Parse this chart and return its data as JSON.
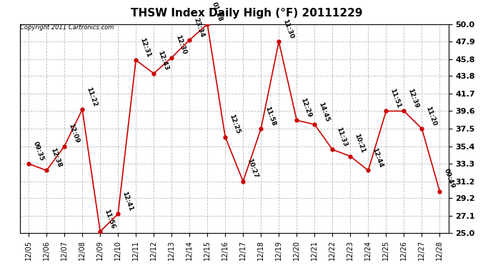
{
  "title": "THSW Index Daily High (°F) 20111229",
  "copyright": "Copyright 2011 Cartronics.com",
  "x_labels": [
    "12/05",
    "12/06",
    "12/07",
    "12/08",
    "12/09",
    "12/10",
    "12/11",
    "12/12",
    "12/13",
    "12/14",
    "12/15",
    "12/16",
    "12/17",
    "12/18",
    "12/19",
    "12/20",
    "12/21",
    "12/22",
    "12/23",
    "12/24",
    "12/25",
    "12/26",
    "12/27",
    "12/28"
  ],
  "y_values": [
    33.3,
    32.5,
    35.4,
    39.8,
    25.2,
    27.3,
    45.7,
    44.1,
    46.0,
    48.1,
    50.0,
    36.5,
    31.2,
    37.5,
    47.9,
    38.5,
    38.0,
    35.0,
    34.2,
    32.5,
    39.6,
    39.6,
    37.5,
    30.0
  ],
  "time_labels": [
    "09:35",
    "12:38",
    "12:09",
    "11:22",
    "11:56",
    "12:41",
    "12:31",
    "12:43",
    "12:30",
    "23:34",
    "01:18",
    "12:25",
    "10:27",
    "11:58",
    "11:30",
    "12:29",
    "14:45",
    "11:33",
    "10:21",
    "12:44",
    "11:51",
    "12:39",
    "11:20",
    "09:49"
  ],
  "y_min": 25.0,
  "y_max": 50.0,
  "y_ticks": [
    25.0,
    27.1,
    29.2,
    31.2,
    33.3,
    35.4,
    37.5,
    39.6,
    41.7,
    43.8,
    45.8,
    47.9,
    50.0
  ],
  "line_color": "#cc0000",
  "marker_color": "#cc0000",
  "bg_color": "#ffffff",
  "grid_color": "#bbbbbb",
  "title_fontsize": 11,
  "label_fontsize": 7,
  "tick_fontsize": 8,
  "annot_fontsize": 6.5
}
